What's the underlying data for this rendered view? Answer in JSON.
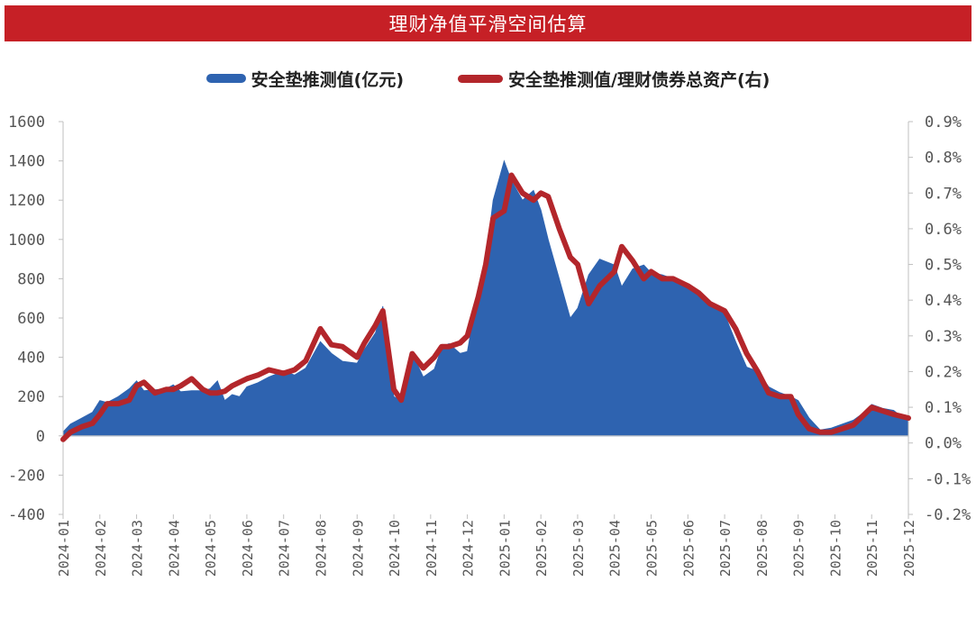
{
  "chart_data": {
    "type": "area",
    "title": "理财净值平滑空间估算",
    "x_ticks": [
      "2024-01",
      "2024-02",
      "2024-03",
      "2024-04",
      "2024-05",
      "2024-06",
      "2024-07",
      "2024-08",
      "2024-09",
      "2024-10",
      "2024-11",
      "2024-12",
      "2025-01",
      "2025-02",
      "2025-03",
      "2025-04",
      "2025-05",
      "2025-06",
      "2025-07",
      "2025-08",
      "2025-09",
      "2025-10",
      "2025-11",
      "2025-12"
    ],
    "y_left_ticks": [
      "1600",
      "1400",
      "1200",
      "1000",
      "800",
      "600",
      "400",
      "200",
      "0",
      "-200",
      "-400"
    ],
    "y_left_range": [
      -400,
      1600
    ],
    "y_right_ticks": [
      "0.9%",
      "0.8%",
      "0.7%",
      "0.6%",
      "0.5%",
      "0.4%",
      "0.3%",
      "0.2%",
      "0.1%",
      "0.0%",
      "-0.1%",
      "-0.2%"
    ],
    "y_right_range": [
      -0.2,
      0.9
    ],
    "grid": false,
    "legend_position": "top-center",
    "series": [
      {
        "name": "安全垫推测值(亿元)",
        "axis": "left",
        "kind": "area",
        "color": "#2e63b0",
        "x": [
          0,
          0.2,
          0.5,
          0.8,
          1.0,
          1.2,
          1.5,
          1.8,
          2.0,
          2.2,
          2.5,
          2.8,
          3.0,
          3.2,
          3.5,
          3.8,
          4.0,
          4.2,
          4.4,
          4.6,
          4.8,
          5.0,
          5.3,
          5.6,
          6.0,
          6.3,
          6.6,
          7.0,
          7.3,
          7.6,
          8.0,
          8.2,
          8.5,
          8.7,
          9.0,
          9.2,
          9.5,
          9.8,
          10.1,
          10.3,
          10.5,
          10.8,
          11.0,
          11.3,
          11.5,
          11.7,
          12.0,
          12.2,
          12.5,
          12.8,
          13.0,
          13.2,
          13.5,
          13.8,
          14.0,
          14.3,
          14.6,
          15.0,
          15.2,
          15.5,
          15.8,
          16.0,
          16.3,
          16.6,
          17.0,
          17.3,
          17.6,
          18.0,
          18.3,
          18.6,
          18.9,
          19.2,
          19.5,
          19.8,
          20.0,
          20.3,
          20.6,
          20.9,
          21.2,
          21.5,
          21.8,
          22.0,
          22.3,
          22.6,
          22.8,
          23.0
        ],
        "y": [
          20,
          60,
          90,
          120,
          180,
          170,
          200,
          240,
          280,
          230,
          235,
          240,
          260,
          225,
          230,
          230,
          240,
          280,
          180,
          210,
          200,
          250,
          270,
          300,
          330,
          310,
          345,
          480,
          420,
          380,
          370,
          440,
          525,
          660,
          200,
          180,
          420,
          300,
          340,
          450,
          470,
          420,
          430,
          750,
          900,
          1200,
          1400,
          1300,
          1200,
          1250,
          1150,
          1000,
          800,
          600,
          650,
          820,
          900,
          870,
          760,
          850,
          870,
          830,
          820,
          800,
          770,
          720,
          670,
          620,
          480,
          350,
          330,
          250,
          220,
          200,
          180,
          90,
          30,
          40,
          60,
          80,
          120,
          160,
          140,
          130,
          100,
          80
        ]
      },
      {
        "name": "安全垫推测值/理财债券总资产(右)",
        "axis": "right",
        "kind": "line",
        "color": "#b3262b",
        "x": [
          0,
          0.2,
          0.5,
          0.8,
          1.0,
          1.2,
          1.5,
          1.8,
          2.0,
          2.2,
          2.5,
          2.8,
          3.0,
          3.2,
          3.5,
          3.8,
          4.0,
          4.2,
          4.4,
          4.6,
          4.8,
          5.0,
          5.3,
          5.6,
          6.0,
          6.3,
          6.6,
          7.0,
          7.3,
          7.6,
          8.0,
          8.2,
          8.5,
          8.7,
          9.0,
          9.2,
          9.5,
          9.8,
          10.1,
          10.3,
          10.5,
          10.8,
          11.0,
          11.3,
          11.5,
          11.7,
          12.0,
          12.2,
          12.5,
          12.8,
          13.0,
          13.2,
          13.5,
          13.8,
          14.0,
          14.3,
          14.6,
          15.0,
          15.2,
          15.5,
          15.8,
          16.0,
          16.3,
          16.6,
          17.0,
          17.3,
          17.6,
          18.0,
          18.3,
          18.6,
          18.9,
          19.2,
          19.5,
          19.8,
          20.0,
          20.3,
          20.6,
          20.9,
          21.2,
          21.5,
          21.8,
          22.0,
          22.3,
          22.6,
          22.8,
          23.0
        ],
        "y": [
          0.01,
          0.03,
          0.045,
          0.055,
          0.08,
          0.11,
          0.11,
          0.12,
          0.16,
          0.17,
          0.14,
          0.15,
          0.15,
          0.16,
          0.18,
          0.15,
          0.14,
          0.14,
          0.145,
          0.16,
          0.17,
          0.18,
          0.19,
          0.205,
          0.195,
          0.205,
          0.23,
          0.32,
          0.275,
          0.27,
          0.24,
          0.28,
          0.33,
          0.37,
          0.15,
          0.12,
          0.25,
          0.21,
          0.24,
          0.27,
          0.27,
          0.28,
          0.3,
          0.41,
          0.5,
          0.63,
          0.65,
          0.75,
          0.7,
          0.68,
          0.7,
          0.69,
          0.6,
          0.52,
          0.5,
          0.39,
          0.44,
          0.48,
          0.55,
          0.51,
          0.46,
          0.48,
          0.46,
          0.46,
          0.44,
          0.42,
          0.39,
          0.37,
          0.32,
          0.25,
          0.2,
          0.14,
          0.13,
          0.13,
          0.08,
          0.04,
          0.03,
          0.03,
          0.04,
          0.05,
          0.08,
          0.1,
          0.09,
          0.08,
          0.075,
          0.07
        ]
      }
    ]
  }
}
